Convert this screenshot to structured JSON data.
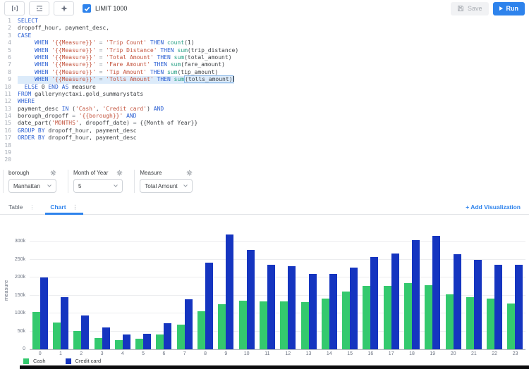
{
  "accent_color": "#2e83ec",
  "toolbar": {
    "icons": [
      "format-icon",
      "indent-icon",
      "assistant-icon"
    ],
    "limit_checked": true,
    "limit_label": "LIMIT 1000",
    "save_label": "Save",
    "save_icon": "floppy-icon",
    "run_label": "Run",
    "run_icon": "play-icon"
  },
  "editor": {
    "active_line": 9,
    "lines": [
      [
        [
          "k",
          "SELECT"
        ]
      ],
      [
        [
          "p",
          "dropoff_hour, payment_desc,"
        ]
      ],
      [
        [
          "k",
          "CASE"
        ]
      ],
      [
        [
          "p",
          "     "
        ],
        [
          "k",
          "WHEN"
        ],
        [
          "p",
          " "
        ],
        [
          "s",
          "'{{Measure}}'"
        ],
        [
          "o",
          " = "
        ],
        [
          "s",
          "'Trip Count'"
        ],
        [
          "p",
          " "
        ],
        [
          "k",
          "THEN"
        ],
        [
          "p",
          " "
        ],
        [
          "f",
          "count"
        ],
        [
          "p",
          "(1)"
        ]
      ],
      [
        [
          "p",
          "     "
        ],
        [
          "k",
          "WHEN"
        ],
        [
          "p",
          " "
        ],
        [
          "s",
          "'{{Measure}}'"
        ],
        [
          "o",
          " = "
        ],
        [
          "s",
          "'Trip Distance'"
        ],
        [
          "p",
          " "
        ],
        [
          "k",
          "THEN"
        ],
        [
          "p",
          " "
        ],
        [
          "f",
          "sum"
        ],
        [
          "p",
          "(trip_distance)"
        ]
      ],
      [
        [
          "p",
          "     "
        ],
        [
          "k",
          "WHEN"
        ],
        [
          "p",
          " "
        ],
        [
          "s",
          "'{{Measure}}'"
        ],
        [
          "o",
          " = "
        ],
        [
          "s",
          "'Total Amount'"
        ],
        [
          "p",
          " "
        ],
        [
          "k",
          "THEN"
        ],
        [
          "p",
          " "
        ],
        [
          "f",
          "sum"
        ],
        [
          "p",
          "(total_amount)"
        ]
      ],
      [
        [
          "p",
          "     "
        ],
        [
          "k",
          "WHEN"
        ],
        [
          "p",
          " "
        ],
        [
          "s",
          "'{{Measure}}'"
        ],
        [
          "o",
          " = "
        ],
        [
          "s",
          "'Fare Amount'"
        ],
        [
          "p",
          " "
        ],
        [
          "k",
          "THEN"
        ],
        [
          "p",
          " "
        ],
        [
          "f",
          "sum"
        ],
        [
          "p",
          "(fare_amount)"
        ]
      ],
      [
        [
          "p",
          "     "
        ],
        [
          "k",
          "WHEN"
        ],
        [
          "p",
          " "
        ],
        [
          "s",
          "'{{Measure}}'"
        ],
        [
          "o",
          " = "
        ],
        [
          "s",
          "'Tip Amount'"
        ],
        [
          "p",
          " "
        ],
        [
          "k",
          "THEN"
        ],
        [
          "p",
          " "
        ],
        [
          "f",
          "sum"
        ],
        [
          "p",
          "(tip_amount)"
        ]
      ],
      [
        [
          "p",
          "     "
        ],
        [
          "k",
          "WHEN"
        ],
        [
          "p",
          " "
        ],
        [
          "s",
          "'{{Measure}}'"
        ],
        [
          "o",
          " = "
        ],
        [
          "s",
          "'Tolls Amount'"
        ],
        [
          "p",
          " "
        ],
        [
          "k",
          "THEN"
        ],
        [
          "p",
          " "
        ],
        [
          "f",
          "sum"
        ],
        [
          "b",
          "(tolls_amount)"
        ]
      ],
      [
        [
          "p",
          "  "
        ],
        [
          "k",
          "ELSE"
        ],
        [
          "p",
          " 0 "
        ],
        [
          "k",
          "END"
        ],
        [
          "p",
          " "
        ],
        [
          "k",
          "AS"
        ],
        [
          "p",
          " measure"
        ]
      ],
      [
        [
          "k",
          "FROM"
        ],
        [
          "p",
          " gallerynyctaxi.gold_summarystats"
        ]
      ],
      [
        [
          "k",
          "WHERE"
        ]
      ],
      [
        [
          "p",
          "payment_desc "
        ],
        [
          "k",
          "IN"
        ],
        [
          "p",
          " ("
        ],
        [
          "s",
          "'Cash'"
        ],
        [
          "p",
          ", "
        ],
        [
          "s",
          "'Credit card'"
        ],
        [
          "p",
          ") "
        ],
        [
          "k",
          "AND"
        ]
      ],
      [
        [
          "p",
          "borough_dropoff "
        ],
        [
          "o",
          "= "
        ],
        [
          "s",
          "'{{borough}}'"
        ],
        [
          "p",
          " "
        ],
        [
          "k",
          "AND"
        ]
      ],
      [
        [
          "p",
          "date_part("
        ],
        [
          "s",
          "'MONTHS'"
        ],
        [
          "p",
          ", dropoff_date) "
        ],
        [
          "o",
          "= "
        ],
        [
          "p",
          "{{Month of Year}}"
        ]
      ],
      [
        [
          "k",
          "GROUP BY"
        ],
        [
          "p",
          " dropoff_hour, payment_desc"
        ]
      ],
      [
        [
          "k",
          "ORDER BY"
        ],
        [
          "p",
          " dropoff_hour, payment_desc"
        ]
      ],
      [],
      [],
      []
    ]
  },
  "parameters": [
    {
      "label": "borough",
      "value": "Manhattan",
      "icon": "gear-icon"
    },
    {
      "label": "Month of Year",
      "value": "5",
      "icon": "gear-icon"
    },
    {
      "label": "Measure",
      "value": "Total Amount",
      "icon": "gear-icon"
    }
  ],
  "tabs": {
    "items": [
      {
        "label": "Table",
        "active": false
      },
      {
        "label": "Chart",
        "active": true
      }
    ],
    "add_label": "+ Add Visualization"
  },
  "chart_data": {
    "type": "bar",
    "title": "",
    "xlabel": "",
    "ylabel": "measure",
    "categories": [
      0,
      1,
      2,
      3,
      4,
      5,
      6,
      7,
      8,
      9,
      10,
      11,
      12,
      13,
      14,
      15,
      16,
      17,
      18,
      19,
      20,
      21,
      22,
      23
    ],
    "series": [
      {
        "name": "Cash",
        "color": "#34c96e",
        "values": [
          105000,
          75000,
          52000,
          32000,
          26000,
          29000,
          41000,
          69000,
          106000,
          126000,
          135000,
          133000,
          134000,
          132000,
          142000,
          161000,
          177000,
          178000,
          184000,
          180000,
          153000,
          145000,
          142000,
          127000
        ]
      },
      {
        "name": "Credit card",
        "color": "#1535c0",
        "values": [
          200000,
          145000,
          95000,
          62000,
          42000,
          44000,
          72000,
          140000,
          242000,
          320000,
          278000,
          236000,
          233000,
          210000,
          211000,
          228000,
          257000,
          267000,
          305000,
          316000,
          265000,
          249000,
          237000,
          237000
        ]
      }
    ],
    "ylim": [
      0,
      350000
    ],
    "yticks": [
      {
        "value": 0,
        "label": "0"
      },
      {
        "value": 50000,
        "label": "50k"
      },
      {
        "value": 100000,
        "label": "100k"
      },
      {
        "value": 150000,
        "label": "150k"
      },
      {
        "value": 200000,
        "label": "200k"
      },
      {
        "value": 250000,
        "label": "250k"
      },
      {
        "value": 300000,
        "label": "300k"
      }
    ],
    "grid": true,
    "legend_position": "bottom-left"
  }
}
